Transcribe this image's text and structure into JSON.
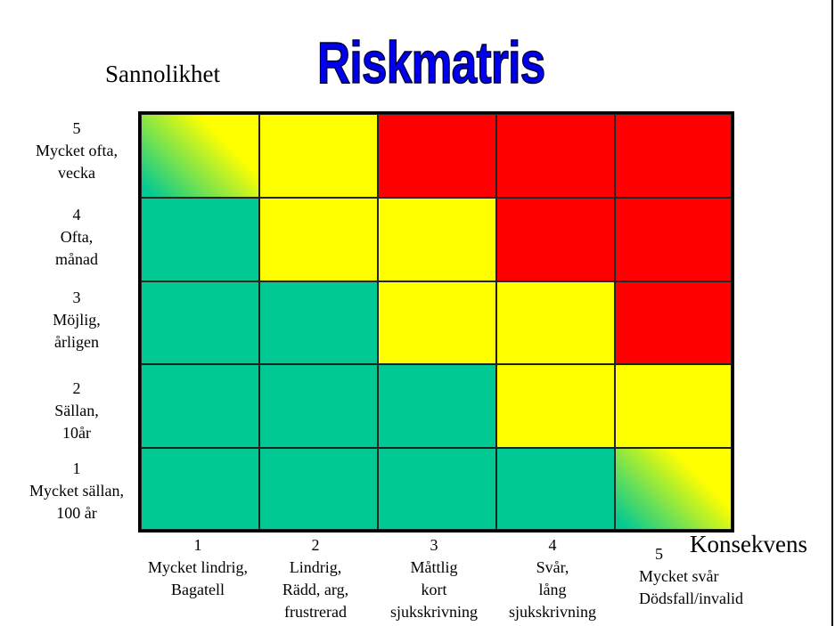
{
  "title": "Riskmatris",
  "y_axis_label": "Sannolikhet",
  "x_axis_label": "Konsekvens",
  "colors": {
    "green": "#00c994",
    "yellow": "#ffff00",
    "red": "#ff0000",
    "title": "#0000ee",
    "gradient": "green-to-yellow"
  },
  "rows": [
    {
      "level": "5",
      "text": "Mycket ofta,\nvecka"
    },
    {
      "level": "4",
      "text": "Ofta,\nmånad"
    },
    {
      "level": "3",
      "text": "Möjlig,\nårligen"
    },
    {
      "level": "2",
      "text": "Sällan,\n10år"
    },
    {
      "level": "1",
      "text": "Mycket sällan,\n100 år"
    }
  ],
  "columns": [
    {
      "level": "1",
      "text": "Mycket lindrig,\nBagatell"
    },
    {
      "level": "2",
      "text": "Lindrig,\nRädd, arg,\nfrustrerad"
    },
    {
      "level": "3",
      "text": "Måttlig\nkort\nsjukskrivning"
    },
    {
      "level": "4",
      "text": "Svår,\nlång\nsjukskrivning"
    },
    {
      "level": "5",
      "text": "Mycket svår\nDödsfall/invalid"
    }
  ],
  "matrix": [
    [
      "gradient",
      "yellow",
      "red",
      "red",
      "red"
    ],
    [
      "green",
      "yellow",
      "yellow",
      "red",
      "red"
    ],
    [
      "green",
      "green",
      "yellow",
      "yellow",
      "red"
    ],
    [
      "green",
      "green",
      "green",
      "yellow",
      "yellow"
    ],
    [
      "green",
      "green",
      "green",
      "green",
      "gradient"
    ]
  ]
}
